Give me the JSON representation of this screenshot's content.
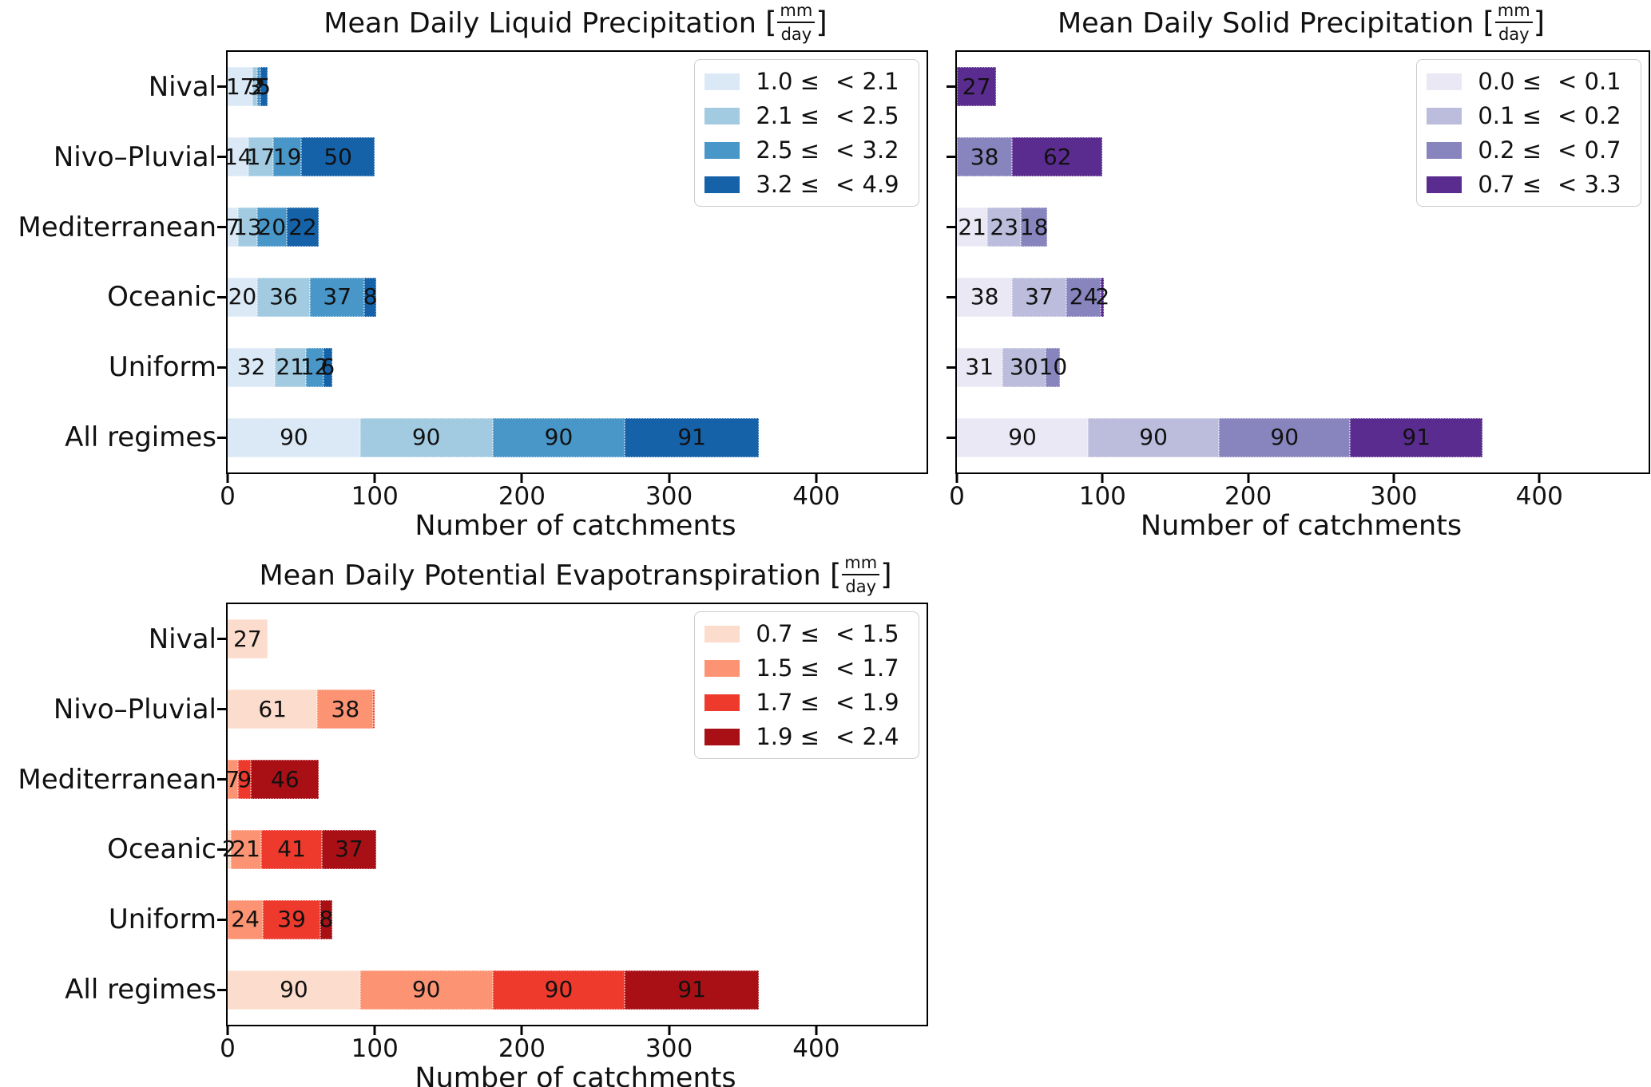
{
  "figure": {
    "background": "#ffffff",
    "xlabel": "Number of catchments",
    "x_ticks": [
      "0",
      "100",
      "200",
      "300",
      "400"
    ],
    "x_tick_values": [
      0,
      100,
      200,
      300,
      400
    ],
    "xlim": [
      0,
      475
    ],
    "categories": [
      "Nival",
      "Nivo–Pluvial",
      "Mediterranean",
      "Oceanic",
      "Uniform",
      "All regimes"
    ]
  },
  "chart_data": [
    {
      "type": "bar",
      "orientation": "horizontal",
      "stacked": true,
      "title": "Mean Daily Liquid Precipitation",
      "unit_numerator": "mm",
      "unit_denominator": "day",
      "xlabel": "Number of catchments",
      "categories": [
        "Nival",
        "Nivo–Pluvial",
        "Mediterranean",
        "Oceanic",
        "Uniform",
        "All regimes"
      ],
      "xlim": [
        0,
        475
      ],
      "x_ticks": [
        "0",
        "100",
        "200",
        "300",
        "400"
      ],
      "x_tick_values": [
        0,
        100,
        200,
        300,
        400
      ],
      "grid": false,
      "legend_position": "upper right",
      "show_y_tick_labels": true,
      "series": [
        {
          "name": "1.0 ≤ < 2.1",
          "legend_lo": "1.0 ≤",
          "legend_hi": "< 2.1",
          "color": "#dbe9f6",
          "values": [
            17,
            14,
            7,
            20,
            32,
            90
          ]
        },
        {
          "name": "2.1 ≤ < 2.5",
          "legend_lo": "2.1 ≤",
          "legend_hi": "< 2.5",
          "color": "#a2cbe2",
          "values": [
            3,
            17,
            13,
            36,
            21,
            90
          ]
        },
        {
          "name": "2.5 ≤ < 3.2",
          "legend_lo": "2.5 ≤",
          "legend_hi": "< 3.2",
          "color": "#4997c8",
          "values": [
            2,
            19,
            20,
            37,
            12,
            90
          ]
        },
        {
          "name": "3.2 ≤ < 4.9",
          "legend_lo": "3.2 ≤",
          "legend_hi": "< 4.9",
          "color": "#1562a9",
          "values": [
            5,
            50,
            22,
            8,
            6,
            91
          ]
        }
      ]
    },
    {
      "type": "bar",
      "orientation": "horizontal",
      "stacked": true,
      "title": "Mean Daily Solid Precipitation",
      "unit_numerator": "mm",
      "unit_denominator": "day",
      "xlabel": "Number of catchments",
      "categories": [
        "Nival",
        "Nivo–Pluvial",
        "Mediterranean",
        "Oceanic",
        "Uniform",
        "All regimes"
      ],
      "xlim": [
        0,
        475
      ],
      "x_ticks": [
        "0",
        "100",
        "200",
        "300",
        "400"
      ],
      "x_tick_values": [
        0,
        100,
        200,
        300,
        400
      ],
      "grid": false,
      "legend_position": "upper right",
      "show_y_tick_labels": false,
      "series": [
        {
          "name": "0.0 ≤ < 0.1",
          "legend_lo": "0.0 ≤",
          "legend_hi": "< 0.1",
          "color": "#e9e8f4",
          "values": [
            0,
            0,
            21,
            38,
            31,
            90
          ]
        },
        {
          "name": "0.1 ≤ < 0.2",
          "legend_lo": "0.1 ≤",
          "legend_hi": "< 0.2",
          "color": "#bcbddc",
          "values": [
            0,
            0,
            23,
            37,
            30,
            90
          ]
        },
        {
          "name": "0.2 ≤ < 0.7",
          "legend_lo": "0.2 ≤",
          "legend_hi": "< 0.7",
          "color": "#8885be",
          "values": [
            0,
            38,
            18,
            24,
            10,
            90
          ]
        },
        {
          "name": "0.7 ≤ < 3.3",
          "legend_lo": "0.7 ≤",
          "legend_hi": "< 3.3",
          "color": "#5b2c8f",
          "values": [
            27,
            62,
            0,
            2,
            0,
            91
          ]
        }
      ]
    },
    {
      "type": "bar",
      "orientation": "horizontal",
      "stacked": true,
      "title": "Mean Daily Potential Evapotranspiration",
      "unit_numerator": "mm",
      "unit_denominator": "day",
      "xlabel": "Number of catchments",
      "categories": [
        "Nival",
        "Nivo–Pluvial",
        "Mediterranean",
        "Oceanic",
        "Uniform",
        "All regimes"
      ],
      "xlim": [
        0,
        475
      ],
      "x_ticks": [
        "0",
        "100",
        "200",
        "300",
        "400"
      ],
      "x_tick_values": [
        0,
        100,
        200,
        300,
        400
      ],
      "grid": false,
      "legend_position": "upper right",
      "show_y_tick_labels": true,
      "series": [
        {
          "name": "0.7 ≤ < 1.5",
          "legend_lo": "0.7 ≤",
          "legend_hi": "< 1.5",
          "color": "#fcdccc",
          "values": [
            27,
            61,
            0,
            2,
            0,
            90
          ]
        },
        {
          "name": "1.5 ≤ < 1.7",
          "legend_lo": "1.5 ≤",
          "legend_hi": "< 1.7",
          "color": "#fc9373",
          "values": [
            0,
            38,
            7,
            21,
            24,
            90
          ]
        },
        {
          "name": "1.7 ≤ < 1.9",
          "legend_lo": "1.7 ≤",
          "legend_hi": "< 1.9",
          "color": "#ee392d",
          "values": [
            0,
            1,
            9,
            41,
            39,
            90
          ]
        },
        {
          "name": "1.9 ≤ < 2.4",
          "legend_lo": "1.9 ≤",
          "legend_hi": "< 2.4",
          "color": "#a81016",
          "values": [
            0,
            0,
            46,
            37,
            8,
            91
          ]
        }
      ]
    }
  ]
}
